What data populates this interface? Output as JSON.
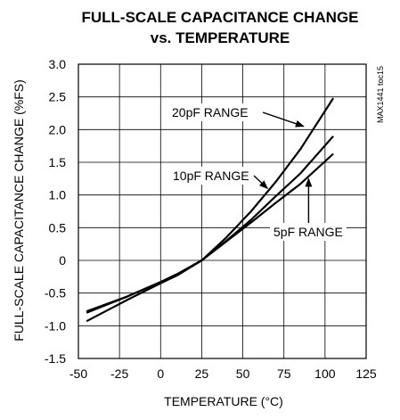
{
  "chart_data": {
    "type": "line",
    "title": "FULL-SCALE CAPACITANCE CHANGE",
    "subtitle": "vs. TEMPERATURE",
    "xlabel": "TEMPERATURE (°C)",
    "ylabel": "FULL-SCALE CAPACITANCE CHANGE (%FS)",
    "xlim": [
      -50,
      125
    ],
    "ylim": [
      -1.5,
      3.0
    ],
    "x_ticks": [
      -50,
      -25,
      0,
      25,
      50,
      75,
      100,
      125
    ],
    "x_tick_labels": [
      "-50",
      "-25",
      "0",
      "25",
      "50",
      "75",
      "100",
      "125"
    ],
    "y_ticks": [
      -1.5,
      -1.0,
      -0.5,
      0,
      0.5,
      1.0,
      1.5,
      2.0,
      2.5,
      3.0
    ],
    "y_tick_labels": [
      "-1.5",
      "-1.0",
      "-0.5",
      "0",
      "0.5",
      "1.0",
      "1.5",
      "2.0",
      "2.5",
      "3.0"
    ],
    "grid": true,
    "series": [
      {
        "name": "20pF RANGE",
        "x": [
          -45,
          -20,
          0,
          10,
          25,
          40,
          55,
          70,
          85,
          105
        ],
        "y": [
          -0.93,
          -0.6,
          -0.35,
          -0.23,
          0.0,
          0.35,
          0.75,
          1.2,
          1.7,
          2.48
        ]
      },
      {
        "name": "10pF RANGE",
        "x": [
          -45,
          -20,
          0,
          10,
          25,
          40,
          55,
          70,
          85,
          105
        ],
        "y": [
          -0.8,
          -0.55,
          -0.33,
          -0.22,
          0.0,
          0.3,
          0.62,
          0.98,
          1.33,
          1.9
        ]
      },
      {
        "name": "5pF RANGE",
        "x": [
          -45,
          -20,
          0,
          10,
          25,
          40,
          55,
          70,
          85,
          105
        ],
        "y": [
          -0.78,
          -0.55,
          -0.33,
          -0.21,
          0.0,
          0.29,
          0.58,
          0.88,
          1.17,
          1.63
        ]
      }
    ],
    "annotations": [
      {
        "text": "20pF RANGE",
        "series": "20pF RANGE",
        "arrow_to": [
          87,
          2.05
        ]
      },
      {
        "text": "10pF RANGE",
        "series": "10pF RANGE",
        "arrow_to": [
          65,
          1.1
        ]
      },
      {
        "text": "5pF RANGE",
        "series": "5pF RANGE",
        "arrow_to": [
          90,
          1.25
        ]
      }
    ],
    "watermark": "MAX1441 toc15"
  }
}
